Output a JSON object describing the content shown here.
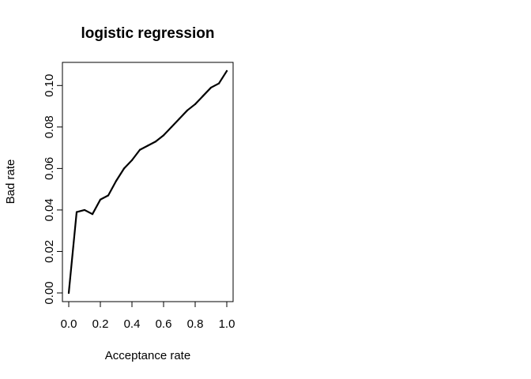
{
  "chart_data": {
    "type": "line",
    "title": "logistic regression",
    "xlabel": "Acceptance rate",
    "ylabel": "Bad rate",
    "xlim": [
      0.0,
      1.0
    ],
    "ylim": [
      0.0,
      0.107
    ],
    "xticks": [
      "0.0",
      "0.2",
      "0.4",
      "0.6",
      "0.8",
      "1.0"
    ],
    "yticks": [
      "0.00",
      "0.02",
      "0.04",
      "0.06",
      "0.08",
      "0.10"
    ],
    "grid": false,
    "legend": "none",
    "line_color": "#000000",
    "series": [
      {
        "x": [
          0.0,
          0.05,
          0.1,
          0.15,
          0.2,
          0.25,
          0.3,
          0.35,
          0.4,
          0.45,
          0.5,
          0.55,
          0.6,
          0.65,
          0.7,
          0.75,
          0.8,
          0.85,
          0.9,
          0.95,
          1.0
        ],
        "values": [
          0.0,
          0.039,
          0.04,
          0.038,
          0.045,
          0.047,
          0.054,
          0.06,
          0.064,
          0.069,
          0.071,
          0.073,
          0.076,
          0.08,
          0.084,
          0.088,
          0.091,
          0.095,
          0.099,
          0.101,
          0.107
        ]
      }
    ]
  }
}
